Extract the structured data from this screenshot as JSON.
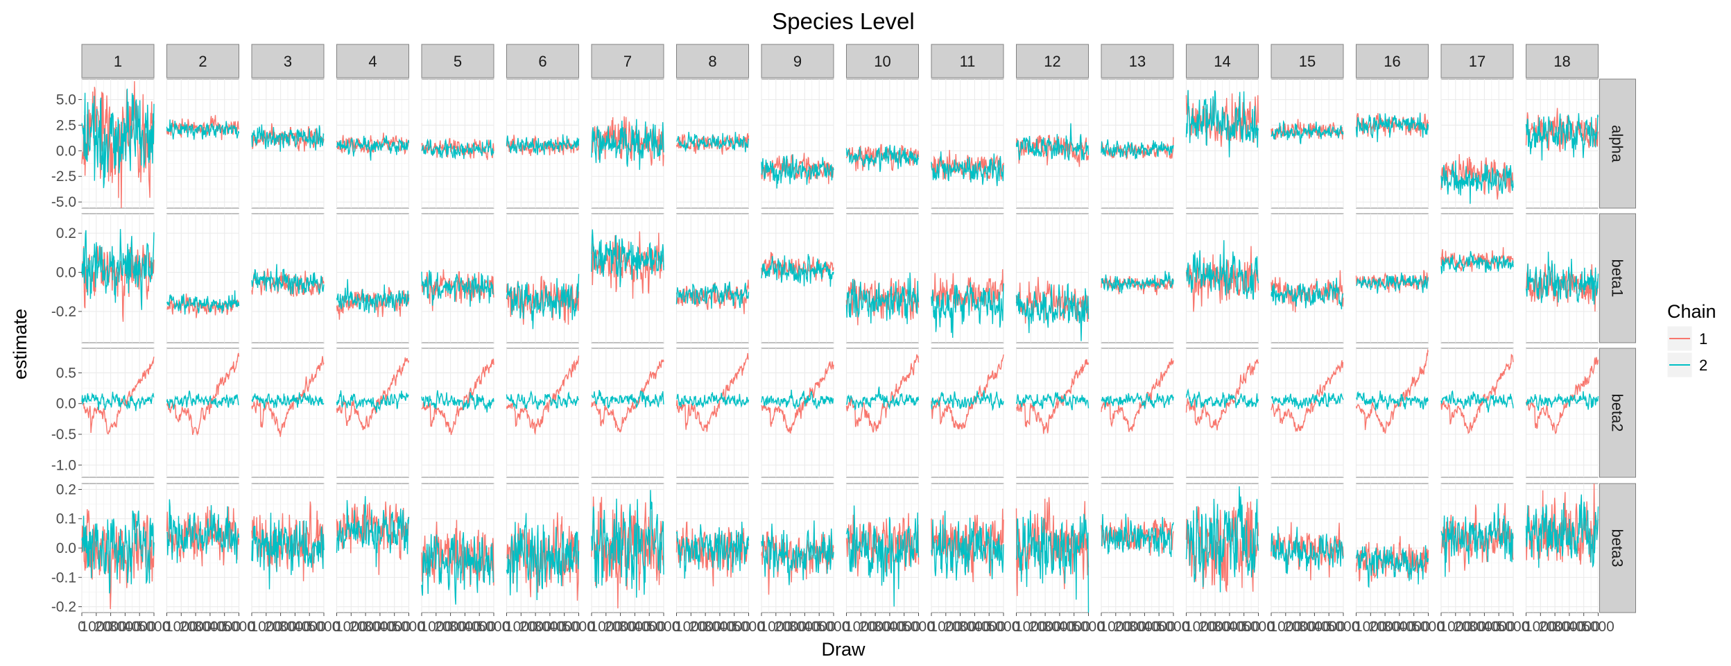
{
  "chart_data": {
    "type": "line",
    "title": "Species Level",
    "xlabel": "Draw",
    "ylabel": "estimate",
    "columns": [
      "1",
      "2",
      "3",
      "4",
      "5",
      "6",
      "7",
      "8",
      "9",
      "10",
      "11",
      "12",
      "13",
      "14",
      "15",
      "16",
      "17",
      "18"
    ],
    "rows": [
      "alpha",
      "beta1",
      "beta2",
      "beta3"
    ],
    "x_tick_labels": [
      "0",
      "1000",
      "2000",
      "3000",
      "4000",
      "5000"
    ],
    "xlim": [
      0,
      5000
    ],
    "grid": true,
    "legend": {
      "title": "Chain",
      "placement": "right",
      "entries": [
        {
          "label": "1",
          "color": "#F8766D"
        },
        {
          "label": "2",
          "color": "#00BFC4"
        }
      ]
    },
    "row_axes": {
      "alpha": {
        "ylim": [
          -5.6,
          7.0
        ],
        "ticks": [
          -5.0,
          -2.5,
          0.0,
          2.5,
          5.0
        ],
        "tick_labels": [
          "-5.0",
          "-2.5",
          "0.0",
          "2.5",
          "5.0"
        ]
      },
      "beta1": {
        "ylim": [
          -0.36,
          0.3
        ],
        "ticks": [
          -0.2,
          0.0,
          0.2
        ],
        "tick_labels": [
          "-0.2",
          "0.0",
          "0.2"
        ]
      },
      "beta2": {
        "ylim": [
          -1.2,
          0.9
        ],
        "ticks": [
          -1.0,
          -0.5,
          0.0,
          0.5
        ],
        "tick_labels": [
          "-1.0",
          "-0.5",
          "0.0",
          "0.5"
        ]
      },
      "beta3": {
        "ylim": [
          -0.22,
          0.22
        ],
        "ticks": [
          -0.2,
          -0.1,
          0.0,
          0.1,
          0.2
        ],
        "tick_labels": [
          "-0.2",
          "-0.1",
          "0.0",
          "0.1",
          "0.2"
        ]
      }
    },
    "series_params": {
      "alpha": {
        "chain1_mean": [
          1.5,
          2.2,
          1.3,
          0.6,
          0.2,
          0.4,
          1.0,
          0.8,
          -1.8,
          -0.5,
          -1.6,
          0.4,
          0.0,
          2.9,
          1.9,
          2.6,
          -2.5,
          1.9
        ],
        "chain2_mean": [
          1.2,
          2.1,
          1.4,
          0.5,
          0.1,
          0.5,
          0.8,
          0.9,
          -1.9,
          -0.6,
          -1.8,
          0.3,
          0.1,
          2.7,
          1.8,
          2.5,
          -2.8,
          1.8
        ],
        "spread": [
          2.2,
          0.4,
          0.5,
          0.4,
          0.4,
          0.4,
          1.0,
          0.4,
          0.6,
          0.5,
          0.6,
          0.6,
          0.4,
          1.1,
          0.4,
          0.5,
          0.8,
          0.9
        ]
      },
      "beta1": {
        "chain1_mean": [
          0.0,
          -0.17,
          -0.06,
          -0.15,
          -0.07,
          -0.13,
          0.05,
          -0.12,
          0.02,
          -0.13,
          -0.12,
          -0.15,
          -0.06,
          -0.04,
          -0.1,
          -0.05,
          0.06,
          -0.07
        ],
        "chain2_mean": [
          0.02,
          -0.16,
          -0.05,
          -0.14,
          -0.08,
          -0.14,
          0.08,
          -0.11,
          0.01,
          -0.15,
          -0.16,
          -0.18,
          -0.06,
          -0.02,
          -0.11,
          -0.05,
          0.05,
          -0.06
        ],
        "spread": [
          0.08,
          0.02,
          0.03,
          0.03,
          0.04,
          0.05,
          0.06,
          0.03,
          0.03,
          0.05,
          0.05,
          0.05,
          0.02,
          0.06,
          0.03,
          0.02,
          0.02,
          0.05
        ]
      },
      "beta2": {
        "chain1_mean": [
          0.0,
          0.0,
          0.0,
          0.0,
          0.0,
          0.0,
          0.0,
          0.0,
          0.0,
          0.0,
          0.0,
          0.0,
          0.0,
          0.0,
          0.0,
          0.0,
          0.0,
          0.0
        ],
        "chain2_mean": [
          0.05,
          0.05,
          0.05,
          0.05,
          0.05,
          0.05,
          0.05,
          0.05,
          0.05,
          0.05,
          0.05,
          0.05,
          0.05,
          0.05,
          0.05,
          0.05,
          0.05,
          0.05
        ],
        "spread": [
          0.06,
          0.06,
          0.06,
          0.06,
          0.06,
          0.06,
          0.06,
          0.06,
          0.06,
          0.06,
          0.06,
          0.06,
          0.06,
          0.06,
          0.06,
          0.06,
          0.06,
          0.06
        ]
      },
      "beta3": {
        "chain1_mean": [
          0.0,
          0.04,
          0.02,
          0.07,
          -0.03,
          -0.02,
          0.0,
          0.0,
          -0.02,
          0.02,
          0.02,
          0.02,
          0.04,
          0.02,
          0.0,
          -0.04,
          0.03,
          0.05
        ],
        "chain2_mean": [
          0.01,
          0.05,
          0.01,
          0.06,
          -0.04,
          -0.03,
          0.01,
          0.0,
          -0.03,
          0.01,
          0.0,
          0.01,
          0.04,
          0.01,
          -0.01,
          -0.05,
          0.03,
          0.05
        ],
        "spread": [
          0.06,
          0.04,
          0.05,
          0.04,
          0.05,
          0.06,
          0.07,
          0.04,
          0.04,
          0.05,
          0.05,
          0.06,
          0.03,
          0.07,
          0.03,
          0.03,
          0.04,
          0.05
        ]
      }
    }
  }
}
